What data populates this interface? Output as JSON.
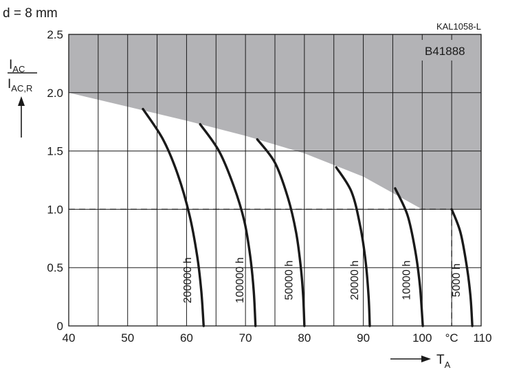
{
  "header": {
    "label": "d = 8 mm",
    "figure_code": "KAL1058-L",
    "part_number": "B41888"
  },
  "chart_data": {
    "type": "line",
    "xlabel": "T",
    "xlabel_sub": "A",
    "x_unit": "°C",
    "ylabel_num": "I",
    "ylabel_num_sub": "AC",
    "ylabel_den": "I",
    "ylabel_den_sub": "AC,R",
    "xlim": [
      40,
      110
    ],
    "ylim": [
      0,
      2.5
    ],
    "x_ticks": [
      40,
      50,
      60,
      70,
      80,
      90,
      100,
      110
    ],
    "y_ticks": [
      0,
      0.5,
      1.0,
      1.5,
      2.0,
      2.5
    ],
    "y_tick_labels": [
      "0",
      "0.5",
      "1.0",
      "1.5",
      "2.0",
      "2.5"
    ],
    "grid": true,
    "minor_x_gridlines": [
      45,
      55,
      65,
      75,
      85,
      95,
      105
    ],
    "shaded_region_color": "#b3b3b6",
    "shaded_region_upper_boundary": [
      {
        "x": 40,
        "y": 2.0
      },
      {
        "x": 50,
        "y": 1.88
      },
      {
        "x": 60,
        "y": 1.76
      },
      {
        "x": 70,
        "y": 1.63
      },
      {
        "x": 80,
        "y": 1.48
      },
      {
        "x": 90,
        "y": 1.28
      },
      {
        "x": 100,
        "y": 1.0
      },
      {
        "x": 110,
        "y": 1.0
      }
    ],
    "reference_line": {
      "y": 1.0,
      "x_end": 105,
      "style": "dashed"
    },
    "series": [
      {
        "name": "200000 h",
        "points": [
          [
            52.6,
            1.86
          ],
          [
            56,
            1.6
          ],
          [
            58.5,
            1.3
          ],
          [
            60.5,
            0.95
          ],
          [
            61.8,
            0.6
          ],
          [
            62.5,
            0.3
          ],
          [
            62.9,
            0
          ]
        ]
      },
      {
        "name": "100000 h",
        "points": [
          [
            62.3,
            1.73
          ],
          [
            65.5,
            1.5
          ],
          [
            68,
            1.2
          ],
          [
            69.8,
            0.9
          ],
          [
            70.8,
            0.6
          ],
          [
            71.4,
            0.3
          ],
          [
            71.7,
            0
          ]
        ]
      },
      {
        "name": "50000 h",
        "points": [
          [
            72,
            1.6
          ],
          [
            75,
            1.4
          ],
          [
            77.2,
            1.1
          ],
          [
            78.6,
            0.8
          ],
          [
            79.4,
            0.5
          ],
          [
            79.8,
            0.25
          ],
          [
            80,
            0
          ]
        ]
      },
      {
        "name": "20000 h",
        "points": [
          [
            85.4,
            1.36
          ],
          [
            88,
            1.15
          ],
          [
            89.5,
            0.85
          ],
          [
            90.4,
            0.55
          ],
          [
            90.9,
            0.25
          ],
          [
            91.1,
            0
          ]
        ]
      },
      {
        "name": "10000 h",
        "points": [
          [
            95.4,
            1.18
          ],
          [
            97.5,
            0.95
          ],
          [
            98.8,
            0.65
          ],
          [
            99.6,
            0.35
          ],
          [
            100.1,
            0
          ]
        ]
      },
      {
        "name": "5000 h",
        "points": [
          [
            105,
            1.0
          ],
          [
            106.5,
            0.8
          ],
          [
            107.6,
            0.5
          ],
          [
            108.2,
            0.25
          ],
          [
            108.5,
            0
          ]
        ]
      }
    ],
    "series_label_y": 0.25
  }
}
